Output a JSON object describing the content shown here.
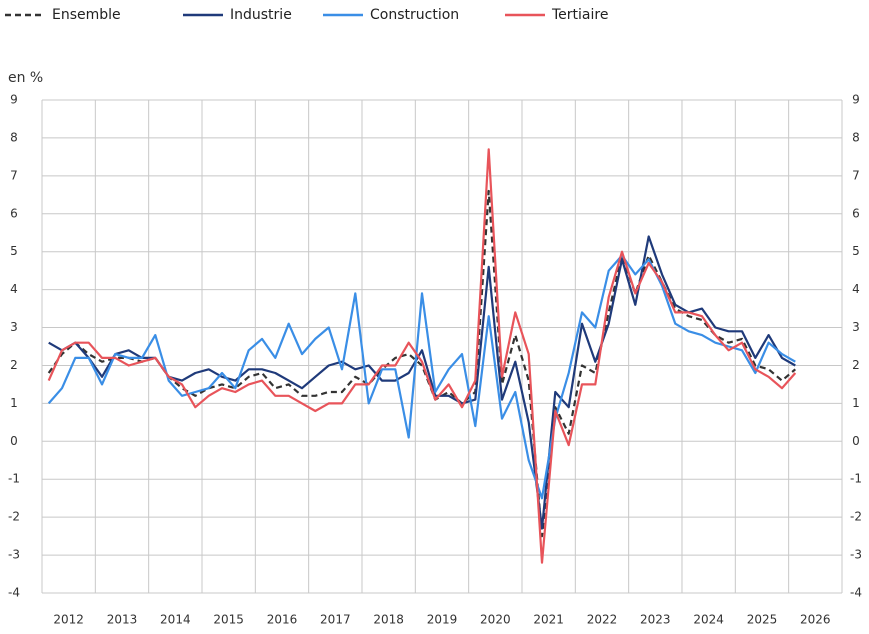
{
  "chart_data": {
    "type": "line",
    "ylabel": "en %",
    "categories": [
      "2012",
      null,
      null,
      null,
      "2013",
      null,
      null,
      null,
      "2014",
      null,
      null,
      null,
      "2015",
      null,
      null,
      null,
      "2016",
      null,
      null,
      null,
      "2017",
      null,
      null,
      null,
      "2018",
      null,
      null,
      null,
      "2019",
      null,
      null,
      null,
      "2020",
      null,
      null,
      null,
      "2021",
      null,
      null,
      null,
      "2022",
      null,
      null,
      null,
      "2023",
      null,
      null,
      null,
      "2024",
      null,
      null,
      null,
      "2025",
      null,
      null,
      null,
      "2026"
    ],
    "series": [
      {
        "name": "Ensemble",
        "color": "#333333",
        "dashed": true,
        "values": [
          1.8,
          2.3,
          2.6,
          2.3,
          2.1,
          2.2,
          2.2,
          2.1,
          2.2,
          1.7,
          1.4,
          1.2,
          1.4,
          1.5,
          1.4,
          1.7,
          1.8,
          1.4,
          1.5,
          1.2,
          1.2,
          1.3,
          1.3,
          1.7,
          1.5,
          1.9,
          2.2,
          2.3,
          2.0,
          1.1,
          1.3,
          1.0,
          1.3,
          6.6,
          1.5,
          2.8,
          1.6,
          -2.5,
          0.9,
          0.2,
          2.0,
          1.8,
          3.4,
          4.9,
          3.9,
          4.9,
          4.2,
          3.5,
          3.3,
          3.2,
          2.8,
          2.6,
          2.7,
          2.0,
          1.9,
          1.6,
          1.9
        ]
      },
      {
        "name": "Industrie",
        "color": "#1f3a7a",
        "values": [
          2.6,
          2.4,
          2.6,
          2.2,
          1.7,
          2.3,
          2.4,
          2.2,
          2.2,
          1.7,
          1.6,
          1.8,
          1.9,
          1.7,
          1.6,
          1.9,
          1.9,
          1.8,
          1.6,
          1.4,
          1.7,
          2.0,
          2.1,
          1.9,
          2.0,
          1.6,
          1.6,
          1.8,
          2.4,
          1.2,
          1.2,
          1.0,
          1.1,
          4.6,
          1.1,
          2.1,
          0.5,
          -2.3,
          1.3,
          0.9,
          3.1,
          2.1,
          3.1,
          4.8,
          3.6,
          5.4,
          4.4,
          3.6,
          3.4,
          3.5,
          3.0,
          2.9,
          2.9,
          2.2,
          2.8,
          2.2,
          2.0
        ]
      },
      {
        "name": "Construction",
        "color": "#3a8ee6",
        "values": [
          1.0,
          1.4,
          2.2,
          2.2,
          1.5,
          2.3,
          2.2,
          2.2,
          2.8,
          1.6,
          1.2,
          1.3,
          1.4,
          1.8,
          1.4,
          2.4,
          2.7,
          2.2,
          3.1,
          2.3,
          2.7,
          3.0,
          1.9,
          3.9,
          1.0,
          1.9,
          1.9,
          0.1,
          3.9,
          1.3,
          1.9,
          2.3,
          0.4,
          3.3,
          0.6,
          1.3,
          -0.5,
          -1.5,
          0.6,
          1.8,
          3.4,
          3.0,
          4.5,
          4.9,
          4.4,
          4.8,
          4.1,
          3.1,
          2.9,
          2.8,
          2.6,
          2.5,
          2.4,
          1.8,
          2.6,
          2.3,
          2.1
        ]
      },
      {
        "name": "Tertiaire",
        "color": "#e8545a",
        "values": [
          1.6,
          2.4,
          2.6,
          2.6,
          2.2,
          2.2,
          2.0,
          2.1,
          2.2,
          1.7,
          1.5,
          0.9,
          1.2,
          1.4,
          1.3,
          1.5,
          1.6,
          1.2,
          1.2,
          1.0,
          0.8,
          1.0,
          1.0,
          1.5,
          1.5,
          2.0,
          2.0,
          2.6,
          2.1,
          1.1,
          1.5,
          0.9,
          1.6,
          7.7,
          1.7,
          3.4,
          2.3,
          -3.2,
          0.8,
          -0.1,
          1.5,
          1.5,
          3.8,
          5.0,
          3.9,
          4.7,
          4.2,
          3.4,
          3.4,
          3.3,
          2.8,
          2.4,
          2.6,
          1.9,
          1.7,
          1.4,
          1.8
        ]
      }
    ],
    "ylim": [
      -4,
      9
    ],
    "yticks": [
      -4,
      -3,
      -2,
      -1,
      0,
      1,
      2,
      3,
      4,
      5,
      6,
      7,
      8,
      9
    ],
    "grid": true
  }
}
